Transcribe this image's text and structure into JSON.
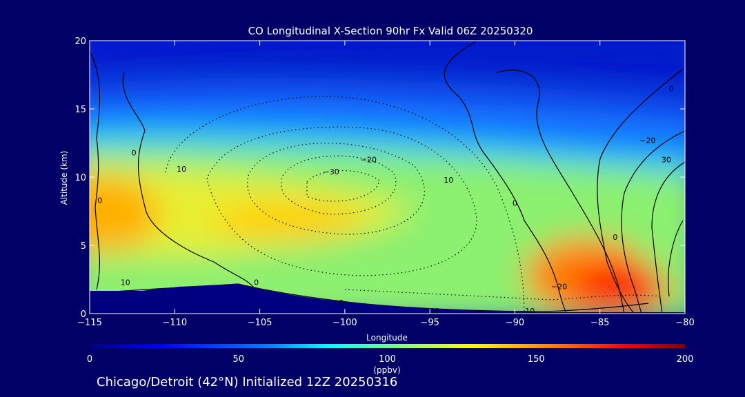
{
  "chart_data": {
    "type": "heatmap",
    "title": "CO Longitudinal X-Section 90hr  Fx Valid 06Z 20250320",
    "xlabel": "Longitude",
    "ylabel": "Altitude (km)",
    "xlim": [
      -115,
      -80
    ],
    "ylim": [
      0,
      20
    ],
    "x_ticks": [
      -115,
      -110,
      -105,
      -100,
      -95,
      -90,
      -85,
      -80
    ],
    "y_ticks": [
      0,
      5,
      10,
      15,
      20
    ],
    "colorbar": {
      "range": [
        0,
        200
      ],
      "ticks": [
        0,
        50,
        100,
        150,
        200
      ],
      "unit": "(ppbv)",
      "colormap": [
        "#000080",
        "#0000ff",
        "#0080ff",
        "#00ffff",
        "#80ff80",
        "#ffff00",
        "#ff8000",
        "#ff0000",
        "#800000"
      ]
    },
    "field_samples": [
      {
        "lon": -114,
        "alt": 18,
        "co": 45
      },
      {
        "lon": -100,
        "alt": 18,
        "co": 45
      },
      {
        "lon": -87,
        "alt": 18,
        "co": 42
      },
      {
        "lon": -114,
        "alt": 15,
        "co": 55
      },
      {
        "lon": -100,
        "alt": 15,
        "co": 58
      },
      {
        "lon": -85,
        "alt": 15,
        "co": 50
      },
      {
        "lon": -114,
        "alt": 11,
        "co": 105
      },
      {
        "lon": -100,
        "alt": 11,
        "co": 100
      },
      {
        "lon": -85,
        "alt": 11,
        "co": 70
      },
      {
        "lon": -114,
        "alt": 8,
        "co": 135
      },
      {
        "lon": -103,
        "alt": 6,
        "co": 128
      },
      {
        "lon": -95,
        "alt": 5,
        "co": 110
      },
      {
        "lon": -88,
        "alt": 5,
        "co": 95
      },
      {
        "lon": -86,
        "alt": 3.5,
        "co": 145
      },
      {
        "lon": -84,
        "alt": 1.5,
        "co": 190
      },
      {
        "lon": -82,
        "alt": 1,
        "co": 185
      }
    ],
    "contour_labels": [
      {
        "text": "10",
        "lon": -109.6,
        "alt": 10.6
      },
      {
        "text": "-30",
        "lon": -100.8,
        "alt": 10.4
      },
      {
        "text": "-20",
        "lon": -98.6,
        "alt": 11.3
      },
      {
        "text": "10",
        "lon": -93.9,
        "alt": 9.8
      },
      {
        "text": "0",
        "lon": -90,
        "alt": 8.1
      },
      {
        "text": "0",
        "lon": -112.4,
        "alt": 11.8
      },
      {
        "text": "0",
        "lon": -114.4,
        "alt": 8.3
      },
      {
        "text": "10",
        "lon": -112.9,
        "alt": 2.3
      },
      {
        "text": "0",
        "lon": -105.2,
        "alt": 2.3
      },
      {
        "text": "0",
        "lon": -100.2,
        "alt": 0.8
      },
      {
        "text": "-10",
        "lon": -94.9,
        "alt": 0.2
      },
      {
        "text": "-10",
        "lon": -89.3,
        "alt": 0.2
      },
      {
        "text": "-20",
        "lon": -87.4,
        "alt": 2.0
      },
      {
        "text": "0",
        "lon": -84.1,
        "alt": 5.6
      },
      {
        "text": "-20",
        "lon": -82.2,
        "alt": 12.7
      },
      {
        "text": "30",
        "lon": -81.1,
        "alt": 11.3
      },
      {
        "text": "0",
        "lon": -80.8,
        "alt": 16.5
      }
    ]
  },
  "footer_text": "Chicago/Detroit (42°N) Initialized 12Z 20250316"
}
